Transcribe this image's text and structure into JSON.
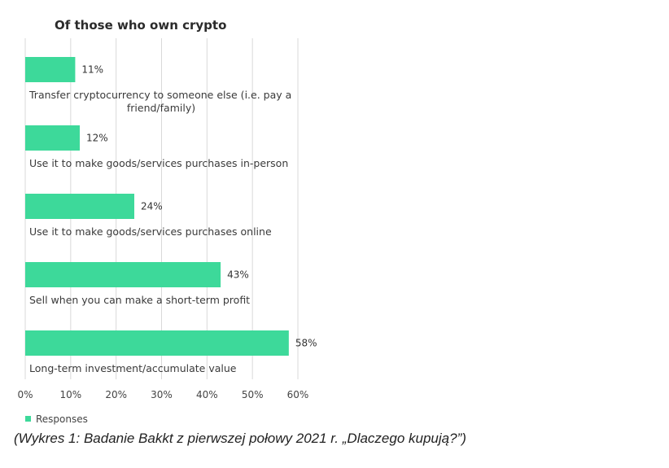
{
  "chart_data": {
    "type": "bar",
    "orientation": "horizontal",
    "title": "Of those who own crypto",
    "categories": [
      [
        "Transfer cryptocurrency to someone else (i.e. pay a",
        "friend/family)"
      ],
      [
        "Use it to make goods/services purchases in-person"
      ],
      [
        "Use it to make goods/services purchases online"
      ],
      [
        "Sell when you can make a short-term profit"
      ],
      [
        "Long-term investment/accumulate value"
      ]
    ],
    "series": [
      {
        "name": "Responses",
        "values": [
          11,
          12,
          24,
          43,
          58
        ]
      }
    ],
    "data_labels": [
      "11%",
      "12%",
      "24%",
      "43%",
      "58%"
    ],
    "xlim": [
      0,
      60
    ],
    "x_ticks": [
      0,
      10,
      20,
      30,
      40,
      50,
      60
    ],
    "x_tick_labels": [
      "0%",
      "10%",
      "20%",
      "30%",
      "40%",
      "50%",
      "60%"
    ],
    "grid": true,
    "legend_position": "bottom-left",
    "bar_color": "#3dd99a"
  },
  "caption": "(Wykres 1: Badanie Bakkt z pierwszej połowy 2021 r. „Dlaczego kupują?”)"
}
